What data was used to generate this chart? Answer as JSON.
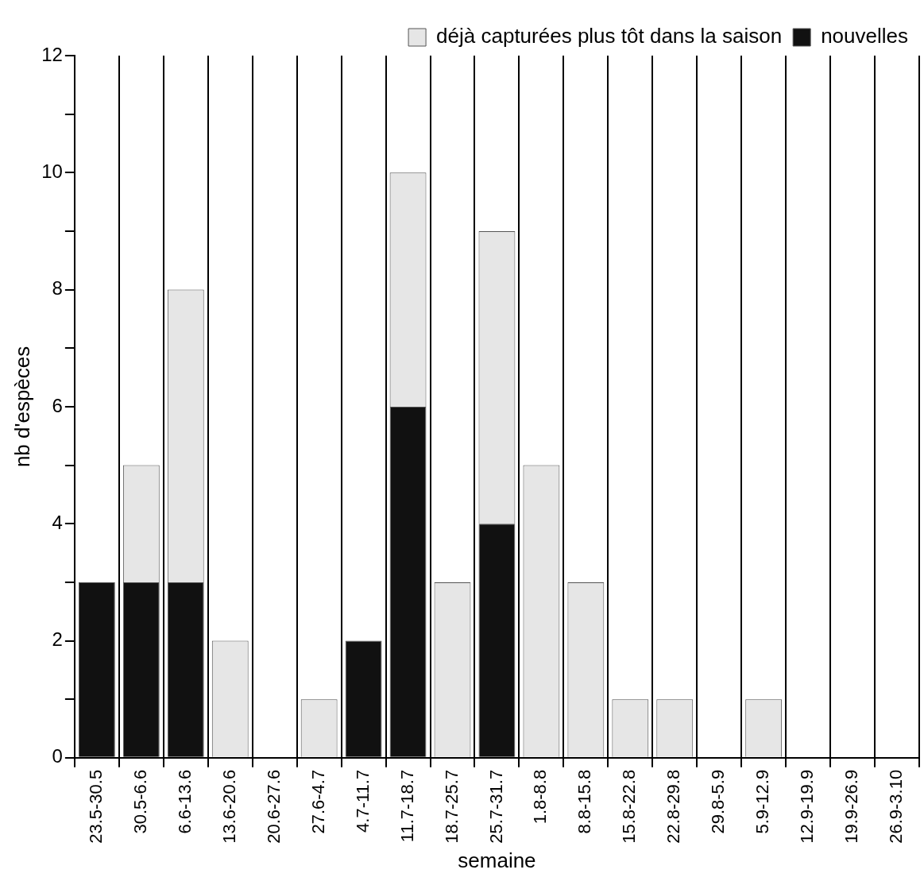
{
  "chart_data": {
    "type": "bar",
    "xlabel": "semaine",
    "ylabel": "nb d'espèces",
    "categories": [
      "23.5-30.5",
      "30.5-6.6",
      "6.6-13.6",
      "13.6-20.6",
      "20.6-27.6",
      "27.6-4.7",
      "4.7-11.7",
      "11.7-18.7",
      "18.7-25.7",
      "25.7-31.7",
      "1.8-8.8",
      "8.8-15.8",
      "15.8-22.8",
      "22.8-29.8",
      "29.8-5.9",
      "5.9-12.9",
      "12.9-19.9",
      "19.9-26.9",
      "26.9-3.10"
    ],
    "series": [
      {
        "name": "nouvelles",
        "color": "#111111",
        "values": [
          3,
          3,
          3,
          0,
          0,
          0,
          2,
          6,
          0,
          4,
          0,
          0,
          0,
          0,
          0,
          0,
          0,
          0,
          0
        ]
      },
      {
        "name": "déjà capturées plus tôt dans la saison",
        "color": "#e6e6e6",
        "values": [
          0,
          2,
          5,
          2,
          0,
          1,
          0,
          4,
          3,
          5,
          5,
          3,
          1,
          1,
          0,
          1,
          0,
          0,
          0
        ]
      }
    ],
    "stacked": true,
    "ylim": [
      0,
      12
    ],
    "yticks": [
      0,
      {
        "value": 1,
        "label": null
      },
      2,
      {
        "value": 3,
        "label": null
      },
      4,
      {
        "value": 5,
        "label": null
      },
      6,
      {
        "value": 7,
        "label": null
      },
      8,
      {
        "value": 9,
        "label": null
      },
      10,
      {
        "value": 11,
        "label": null
      },
      12
    ],
    "grid": "x",
    "legend": "top right"
  }
}
